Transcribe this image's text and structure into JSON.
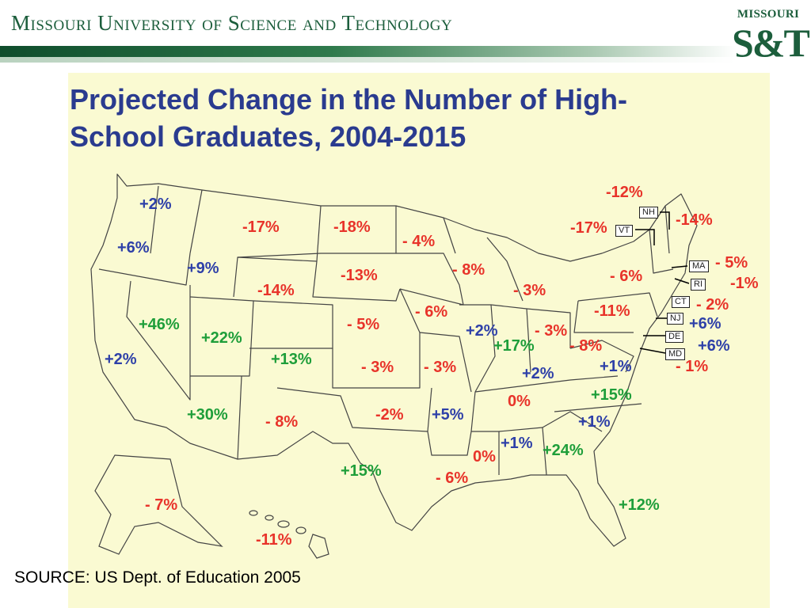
{
  "header": {
    "university": "Missouri University of Science and Technology",
    "logo_top": "MISSOURI",
    "logo_main": "S&T"
  },
  "map_title": "Projected Change in the Number of High-School Graduates, 2004-2015",
  "state_labels": {
    "wa": "+2%",
    "or": "+6%",
    "id": "+9%",
    "mt": "-17%",
    "nd": "-18%",
    "mn": "- 4%",
    "sd": "-13%",
    "wy": "-14%",
    "ne": "- 5%",
    "ia": "- 6%",
    "wi": "- 8%",
    "mi": "- 3%",
    "ca": "+2%",
    "nv": "+46%",
    "ut": "+22%",
    "co": "+13%",
    "ks": "- 3%",
    "mo": "- 3%",
    "il": "+2%",
    "in": "+17%",
    "oh": "- 3%",
    "pa": "-11%",
    "ny": "- 6%",
    "wv": "- 8%",
    "va": "+1%",
    "ky": "+2%",
    "tn": "0%",
    "nc": "+15%",
    "sc": "+1%",
    "az": "+30%",
    "nm": "- 8%",
    "ok": "-2%",
    "ar": "+5%",
    "tx": "+15%",
    "la": "- 6%",
    "ms": "0%",
    "al": "+1%",
    "ga": "+24%",
    "fl": "+12%",
    "ak": "- 7%",
    "hi": "-11%",
    "me": "-14%",
    "nh": "-12%",
    "vt": "-17%",
    "ma": "- 5%",
    "ri": "-1%",
    "ct": "- 2%",
    "nj": "+6%",
    "de": "+6%",
    "md": "- 1%"
  },
  "abbreviations": {
    "nh": "NH",
    "vt": "VT",
    "ma": "MA",
    "ri": "RI",
    "ct": "CT",
    "nj": "NJ",
    "de": "DE",
    "md": "MD"
  },
  "legend_colors": {
    "decrease": "#e8332a",
    "small_increase": "#2e40a8",
    "large_increase": "#1e9e3a"
  },
  "source": "SOURCE: US Dept. of Education 2005"
}
